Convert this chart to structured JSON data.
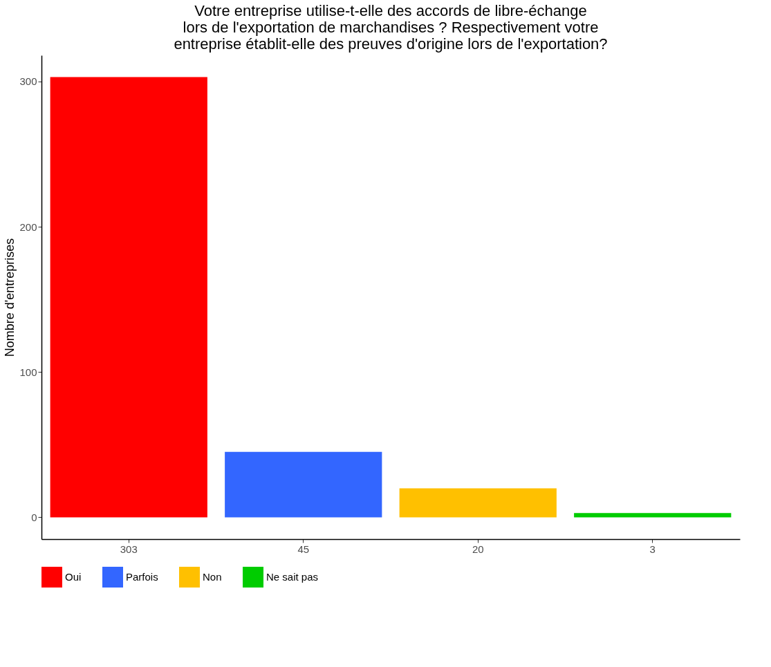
{
  "chart_data": {
    "type": "bar",
    "title": "Votre entreprise utilise-t-elle des accords de libre-échange\nlors de l'exportation de marchandises ? Respectivement votre\nentreprise établit-elle des preuves d'origine lors de l'exportation?",
    "ylabel": "Nombre d'entreprises",
    "categories": [
      "303",
      "45",
      "20",
      "3"
    ],
    "series": [
      {
        "name": "Oui",
        "color": "#ff0000",
        "values": [
          303,
          null,
          null,
          null
        ]
      },
      {
        "name": "Parfois",
        "color": "#3366ff",
        "values": [
          null,
          45,
          null,
          null
        ]
      },
      {
        "name": "Non",
        "color": "#ffc000",
        "values": [
          null,
          null,
          20,
          null
        ]
      },
      {
        "name": "Ne sait pas",
        "color": "#00cc00",
        "values": [
          null,
          null,
          null,
          3
        ]
      }
    ],
    "ylim": [
      -15,
      318
    ],
    "yticks": [
      0,
      100,
      200,
      300
    ],
    "grid": false,
    "legend": "bottom"
  }
}
